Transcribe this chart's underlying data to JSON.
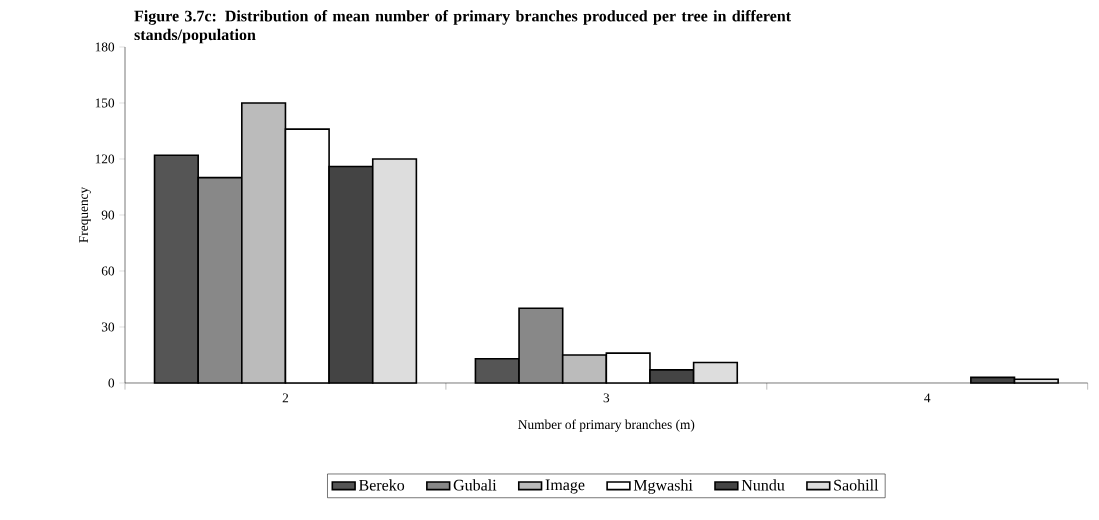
{
  "chart_data": {
    "type": "bar",
    "title": "Figure 3.7c: Distribution of mean number of primary branches produced per tree in different stands/population",
    "xlabel": "Number of primary branches (m)",
    "ylabel": "Frequency",
    "categories": [
      "2",
      "3",
      "4"
    ],
    "series": [
      {
        "name": "Bereko",
        "color": "#555555",
        "values": [
          122,
          13,
          null
        ]
      },
      {
        "name": "Gubali",
        "color": "#888888",
        "values": [
          110,
          40,
          null
        ]
      },
      {
        "name": "Image",
        "color": "#bbbbbb",
        "values": [
          150,
          15,
          null
        ]
      },
      {
        "name": "Mgwashi",
        "color": "#ffffff",
        "values": [
          136,
          16,
          null
        ]
      },
      {
        "name": "Nundu",
        "color": "#444444",
        "values": [
          116,
          7,
          3
        ]
      },
      {
        "name": "Saohill",
        "color": "#dddddd",
        "values": [
          120,
          11,
          2
        ]
      }
    ],
    "ylim": [
      0,
      180
    ],
    "yticks": [
      0,
      30,
      60,
      90,
      120,
      150,
      180
    ],
    "grid": false,
    "legend": "bottom"
  }
}
